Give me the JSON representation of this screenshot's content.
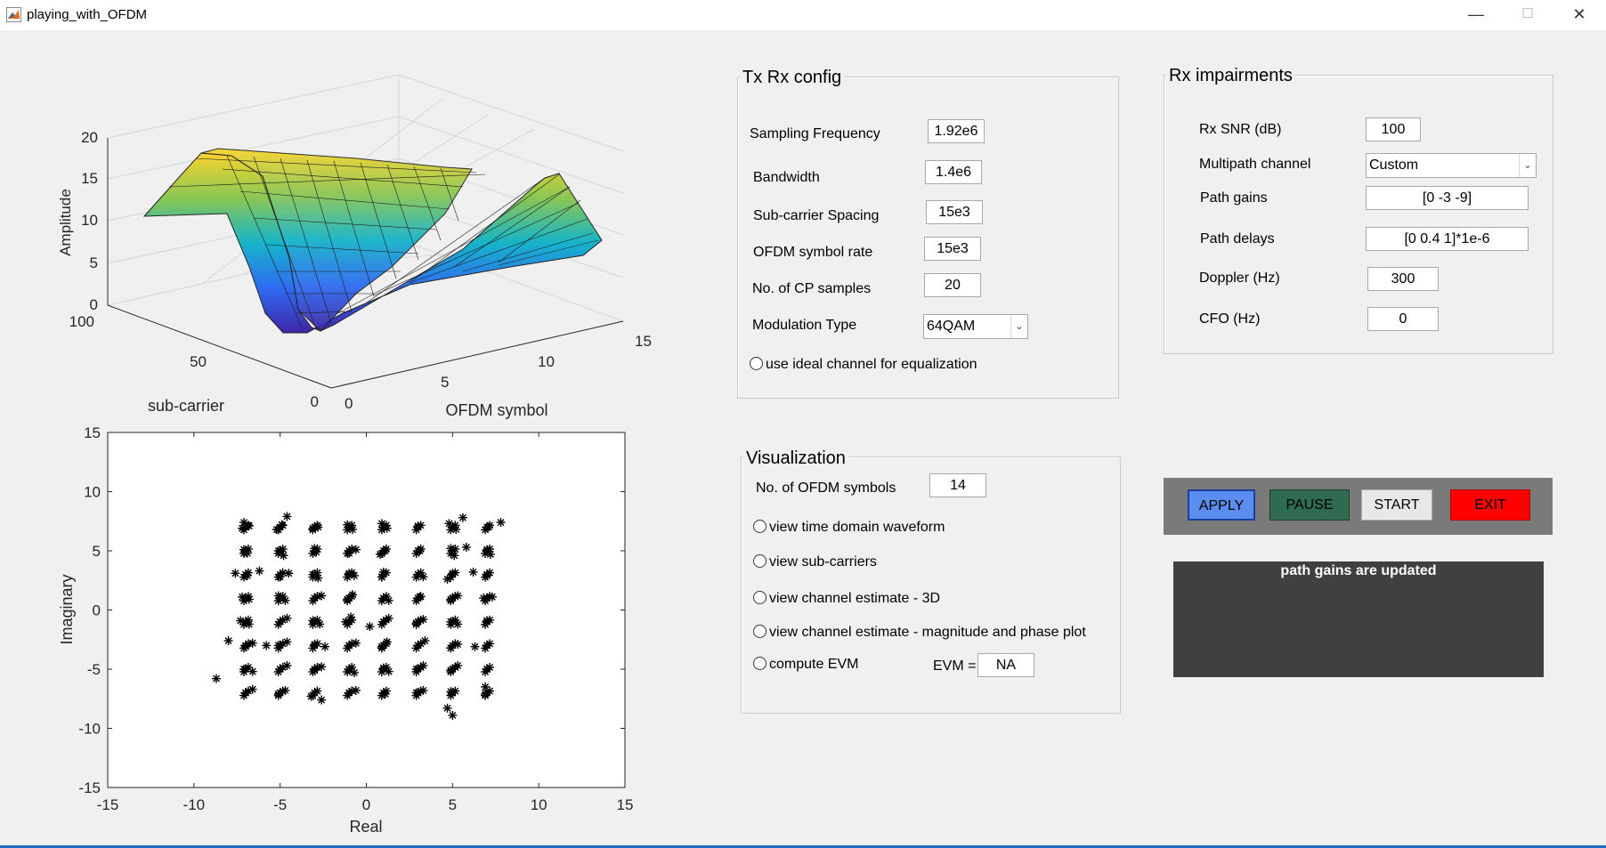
{
  "window": {
    "title": "playing_with_OFDM",
    "minimize": "—",
    "maximize": "☐",
    "close": "✕"
  },
  "surface_plot": {
    "zlabel": "Amplitude",
    "xlabel": "sub-carrier",
    "ylabel": "OFDM symbol",
    "z_ticks": [
      "20",
      "15",
      "10",
      "5",
      "0"
    ],
    "subcarrier_ticks": [
      "100",
      "50",
      "0"
    ],
    "symbol_ticks": [
      "0",
      "5",
      "10",
      "15"
    ],
    "chart_data": {
      "type": "surface",
      "xlabel": "sub-carrier",
      "ylabel": "OFDM symbol",
      "zlabel": "Amplitude",
      "xlim": [
        0,
        100
      ],
      "ylim": [
        0,
        15
      ],
      "zlim": [
        0,
        20
      ],
      "grid": true
    }
  },
  "scatter_plot": {
    "xlabel": "Real",
    "ylabel": "Imaginary",
    "x_ticks": [
      "-15",
      "-10",
      "-5",
      "0",
      "5",
      "10",
      "15"
    ],
    "y_ticks": [
      "15",
      "10",
      "5",
      "0",
      "-5",
      "-10",
      "-15"
    ],
    "chart_data": {
      "type": "scatter",
      "xlabel": "Real",
      "ylabel": "Imaginary",
      "xlim": [
        -15,
        15
      ],
      "ylim": [
        -15,
        15
      ],
      "marker": "*",
      "series": [
        {
          "x": [
            -7,
            -5,
            -3,
            -1,
            1,
            3,
            5,
            7
          ],
          "y": [
            7,
            5,
            3,
            1,
            -1,
            -3,
            -5,
            -7
          ],
          "cluster_points": [
            [
              -7.2,
              6.9
            ],
            [
              -6.8,
              7.1
            ],
            [
              -7.1,
              7.4
            ],
            [
              -4.9,
              7.2
            ],
            [
              -5.2,
              6.8
            ],
            [
              -4.6,
              7.9
            ],
            [
              -3.1,
              6.9
            ],
            [
              -2.8,
              7.0
            ],
            [
              -1.1,
              7.2
            ],
            [
              -0.8,
              6.8
            ],
            [
              0.9,
              7.3
            ],
            [
              1.2,
              6.9
            ],
            [
              3.0,
              7.1
            ],
            [
              4.8,
              7.3
            ],
            [
              5.2,
              6.8
            ],
            [
              5.6,
              7.8
            ],
            [
              7.1,
              7.0
            ],
            [
              7.8,
              7.4
            ],
            [
              -7.1,
              5.1
            ],
            [
              -6.9,
              4.8
            ],
            [
              -5.1,
              5.0
            ],
            [
              -4.8,
              4.6
            ],
            [
              -3.0,
              5.2
            ],
            [
              -2.9,
              4.9
            ],
            [
              -1.0,
              4.8
            ],
            [
              -0.6,
              5.1
            ],
            [
              1.1,
              5.0
            ],
            [
              0.8,
              4.7
            ],
            [
              3.1,
              5.0
            ],
            [
              4.9,
              5.2
            ],
            [
              5.1,
              4.6
            ],
            [
              5.8,
              5.3
            ],
            [
              7.0,
              5.1
            ],
            [
              7.2,
              4.7
            ],
            [
              -7.6,
              3.1
            ],
            [
              -6.9,
              2.9
            ],
            [
              -6.2,
              3.3
            ],
            [
              -5.0,
              2.8
            ],
            [
              -4.5,
              3.1
            ],
            [
              -3.1,
              3.0
            ],
            [
              -2.8,
              2.7
            ],
            [
              -1.0,
              3.1
            ],
            [
              -0.7,
              2.9
            ],
            [
              1.0,
              3.2
            ],
            [
              0.9,
              2.8
            ],
            [
              3.0,
              3.0
            ],
            [
              3.3,
              2.8
            ],
            [
              5.0,
              3.1
            ],
            [
              4.7,
              2.6
            ],
            [
              6.2,
              3.2
            ],
            [
              7.0,
              2.9
            ],
            [
              -7.2,
              1.1
            ],
            [
              -6.8,
              0.9
            ],
            [
              -5.1,
              1.2
            ],
            [
              -4.7,
              0.8
            ],
            [
              -3.0,
              1.0
            ],
            [
              -2.6,
              1.2
            ],
            [
              -1.1,
              0.9
            ],
            [
              -0.8,
              1.3
            ],
            [
              1.0,
              1.0
            ],
            [
              1.3,
              0.8
            ],
            [
              3.1,
              1.1
            ],
            [
              4.9,
              0.9
            ],
            [
              5.3,
              1.2
            ],
            [
              6.8,
              1.0
            ],
            [
              7.3,
              1.1
            ],
            [
              -7.3,
              -0.9
            ],
            [
              -6.8,
              -1.2
            ],
            [
              -5.0,
              -1.0
            ],
            [
              -4.6,
              -0.7
            ],
            [
              -3.1,
              -0.9
            ],
            [
              -2.7,
              -1.2
            ],
            [
              -1.2,
              -1.0
            ],
            [
              -0.9,
              -0.6
            ],
            [
              0.2,
              -1.4
            ],
            [
              1.0,
              -1.0
            ],
            [
              1.3,
              -0.7
            ],
            [
              2.9,
              -1.1
            ],
            [
              3.3,
              -0.8
            ],
            [
              4.9,
              -1.0
            ],
            [
              5.3,
              -1.2
            ],
            [
              7.0,
              -0.9
            ],
            [
              -8.0,
              -2.6
            ],
            [
              -7.0,
              -3.1
            ],
            [
              -6.6,
              -2.8
            ],
            [
              -5.8,
              -3.0
            ],
            [
              -5.1,
              -3.0
            ],
            [
              -4.6,
              -2.7
            ],
            [
              -3.0,
              -2.9
            ],
            [
              -2.4,
              -3.1
            ],
            [
              -1.0,
              -3.0
            ],
            [
              -0.6,
              -2.8
            ],
            [
              0.9,
              -3.1
            ],
            [
              1.2,
              -2.7
            ],
            [
              3.0,
              -3.0
            ],
            [
              3.4,
              -2.6
            ],
            [
              4.9,
              -3.2
            ],
            [
              5.3,
              -2.9
            ],
            [
              6.3,
              -3.1
            ],
            [
              7.0,
              -3.0
            ],
            [
              -7.1,
              -5.0
            ],
            [
              -6.6,
              -5.2
            ],
            [
              -5.0,
              -5.0
            ],
            [
              -4.6,
              -4.7
            ],
            [
              -3.0,
              -5.1
            ],
            [
              -2.6,
              -4.8
            ],
            [
              -1.0,
              -5.0
            ],
            [
              -0.7,
              -5.3
            ],
            [
              1.0,
              -4.9
            ],
            [
              1.3,
              -5.2
            ],
            [
              2.9,
              -5.0
            ],
            [
              3.3,
              -4.7
            ],
            [
              4.9,
              -5.1
            ],
            [
              5.3,
              -4.7
            ],
            [
              7.0,
              -5.0
            ],
            [
              -8.7,
              -5.8
            ],
            [
              -7.0,
              -7.0
            ],
            [
              -6.6,
              -6.7
            ],
            [
              -5.1,
              -7.1
            ],
            [
              -4.7,
              -6.8
            ],
            [
              -3.2,
              -7.3
            ],
            [
              -2.6,
              -7.6
            ],
            [
              -1.0,
              -7.0
            ],
            [
              -0.6,
              -6.8
            ],
            [
              1.1,
              -7.1
            ],
            [
              2.9,
              -7.0
            ],
            [
              3.3,
              -6.8
            ],
            [
              4.9,
              -6.9
            ],
            [
              4.7,
              -8.3
            ],
            [
              5.0,
              -8.9
            ],
            [
              6.9,
              -7.1
            ],
            [
              6.9,
              -6.5
            ]
          ]
        }
      ]
    }
  },
  "txrx": {
    "title": "Tx Rx config",
    "sampling_frequency": {
      "label": "Sampling Frequency",
      "value": "1.92e6"
    },
    "bandwidth": {
      "label": "Bandwidth",
      "value": "1.4e6"
    },
    "subcarrier_spacing": {
      "label": "Sub-carrier Spacing",
      "value": "15e3"
    },
    "symbol_rate": {
      "label": "OFDM symbol rate",
      "value": "15e3"
    },
    "cp_samples": {
      "label": "No. of CP samples",
      "value": "20"
    },
    "modulation": {
      "label": "Modulation Type",
      "value": "64QAM"
    },
    "ideal_channel_label": "use ideal channel for equalization"
  },
  "rx_impairments": {
    "title": "Rx impairments",
    "snr": {
      "label": "Rx SNR (dB)",
      "value": "100"
    },
    "multipath": {
      "label": "Multipath channel",
      "value": "Custom"
    },
    "path_gains": {
      "label": "Path gains",
      "value": "[0 -3 -9]"
    },
    "path_delays": {
      "label": "Path delays",
      "value": "[0 0.4 1]*1e-6"
    },
    "doppler": {
      "label": "Doppler (Hz)",
      "value": "300"
    },
    "cfo": {
      "label": "CFO (Hz)",
      "value": "0"
    }
  },
  "visualization": {
    "title": "Visualization",
    "num_symbols": {
      "label": "No. of OFDM symbols",
      "value": "14"
    },
    "time_domain_label": "view time domain waveform",
    "subcarriers_label": "view sub-carriers",
    "estimate_3d_label": "view channel estimate - 3D",
    "estimate_mag_phase_label": "view channel estimate - magnitude and phase plot",
    "evm_label": "compute EVM",
    "evm_value_label": "EVM =",
    "evm_value": "NA"
  },
  "controls": {
    "apply": "APPLY",
    "pause": "PAUSE",
    "start": "START",
    "exit": "EXIT"
  },
  "colors": {
    "apply": "#5b8df0",
    "pause": "#2f6b50",
    "start": "#e8e8e8",
    "exit": "#ff0000",
    "status_bg": "#404040",
    "control_bar": "#7a7a7a"
  },
  "status_message": "path gains are updated"
}
